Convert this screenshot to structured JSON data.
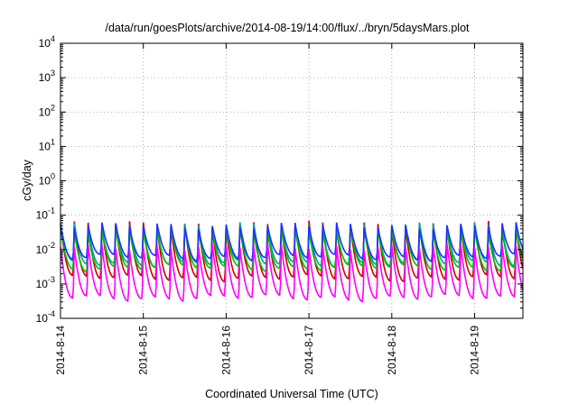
{
  "chart_data": {
    "type": "line",
    "title": "/data/run/goesPlots/archive/2014-08-19/14:00/flux/../bryn/5daysMars.plot",
    "xlabel": "Coordinated Universal Time (UTC)",
    "ylabel": "cGy/day",
    "yscale": "log",
    "ylim": [
      0.0001,
      10000
    ],
    "y_ticks": [
      {
        "base": "10",
        "exp": "-4",
        "value": 0.0001
      },
      {
        "base": "10",
        "exp": "-3",
        "value": 0.001
      },
      {
        "base": "10",
        "exp": "-2",
        "value": 0.01
      },
      {
        "base": "10",
        "exp": "-1",
        "value": 0.1
      },
      {
        "base": "10",
        "exp": "0",
        "value": 1
      },
      {
        "base": "10",
        "exp": "1",
        "value": 10
      },
      {
        "base": "10",
        "exp": "2",
        "value": 100
      },
      {
        "base": "10",
        "exp": "3",
        "value": 1000
      },
      {
        "base": "10",
        "exp": "4",
        "value": 10000
      }
    ],
    "x_ticks": [
      "2014-8-14",
      "2014-8-15",
      "2014-8-16",
      "2014-8-17",
      "2014-8-18",
      "2014-8-19"
    ],
    "xlim": [
      "2014-08-14 00:00",
      "2014-08-19 14:00"
    ],
    "grid": true,
    "legend": "none",
    "oscillation_period_hours": 4,
    "series": [
      {
        "color": "#cc0000",
        "peak": 0.055,
        "trough": 0.0015
      },
      {
        "color": "#00a0a0",
        "peak": 0.05,
        "trough": 0.004
      },
      {
        "color": "#00c000",
        "peak": 0.04,
        "trough": 0.003
      },
      {
        "color": "#2030ff",
        "peak": 0.05,
        "trough": 0.006
      },
      {
        "color": "#ff00ff",
        "peak": 0.012,
        "trough": 0.0004
      }
    ]
  }
}
